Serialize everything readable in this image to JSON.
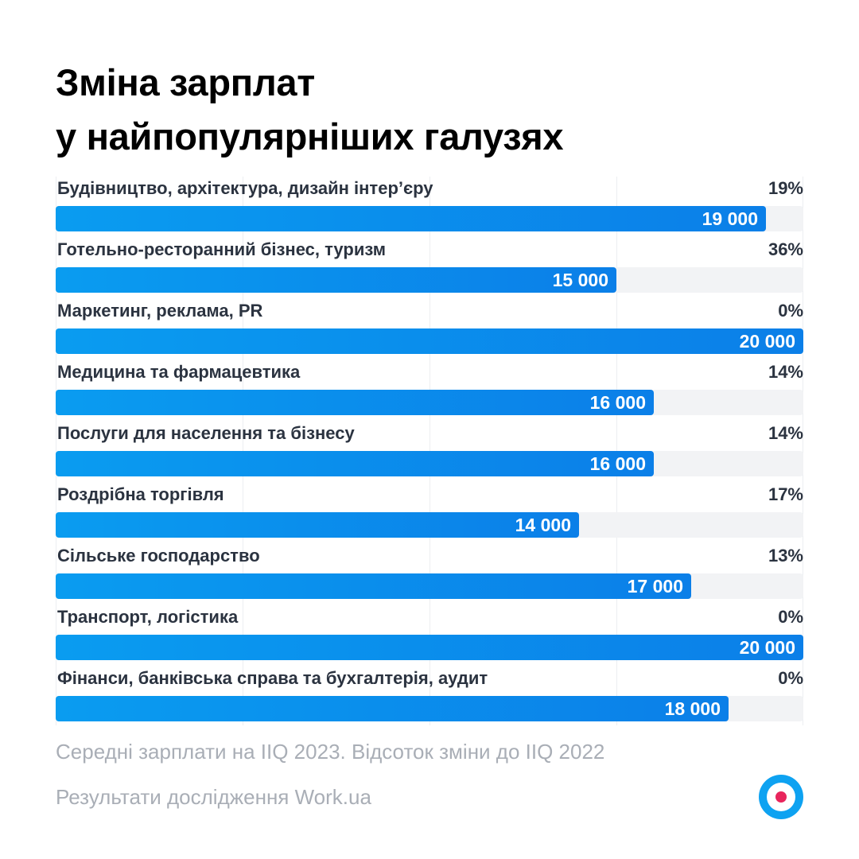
{
  "title": {
    "line1": "Зміна зарплат",
    "line2": "у найпопулярніших галузях"
  },
  "chart_data": {
    "type": "bar",
    "orientation": "horizontal",
    "categories": [
      "Будівництво, архітектура, дизайн інтер’єру",
      "Готельно-ресторанний бізнес, туризм",
      "Маркетинг, реклама, PR",
      "Медицина та фармацевтика",
      "Послуги для населення та бізнесу",
      "Роздрібна торгівля",
      "Сільське господарство",
      "Транспорт, логістика",
      "Фінанси, банківська справа та бухгалтерія, аудит"
    ],
    "values": [
      19000,
      15000,
      20000,
      16000,
      16000,
      14000,
      17000,
      20000,
      18000
    ],
    "value_labels": [
      "19 000",
      "15 000",
      "20 000",
      "16 000",
      "16 000",
      "14 000",
      "17 000",
      "20 000",
      "18 000"
    ],
    "change_labels": [
      "19%",
      "36%",
      "0%",
      "14%",
      "14%",
      "17%",
      "13%",
      "0%",
      "0%"
    ],
    "xlim": [
      0,
      20000
    ],
    "grid": true,
    "legend": "none",
    "bar_color": "#0b8ded"
  },
  "footer": {
    "note": "Середні зарплати на IIQ 2023. Відсоток зміни до IIQ 2022",
    "source": "Результати дослідження Work.ua"
  },
  "logo": {
    "icon": "work-ua-logo-icon",
    "colors": {
      "outer": "#0ea2f1",
      "inner": "#ffffff",
      "dot": "#e8255c"
    }
  }
}
